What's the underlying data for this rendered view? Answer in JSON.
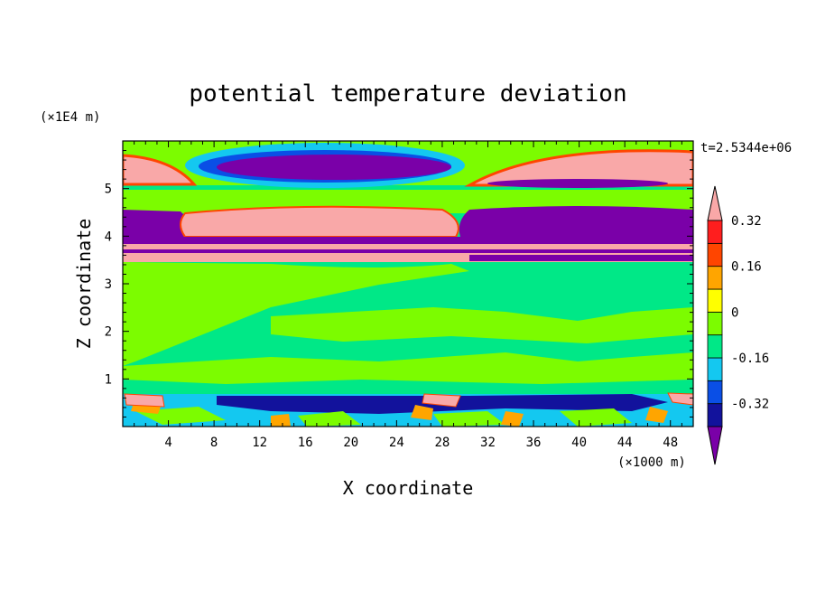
{
  "chart_data": {
    "type": "heatmap",
    "title": "potential temperature deviation",
    "xlabel": "X coordinate",
    "ylabel": "Z coordinate",
    "x_unit": "(×1000 m)",
    "y_unit": "(×1E4 m)",
    "time_label": "t=2.5344e+06",
    "xlim": [
      0,
      50
    ],
    "ylim": [
      0,
      6
    ],
    "x_ticks": [
      "4",
      "8",
      "12",
      "16",
      "20",
      "24",
      "28",
      "32",
      "36",
      "40",
      "44",
      "48"
    ],
    "y_ticks": [
      "1",
      "2",
      "3",
      "4",
      "5"
    ],
    "colorbar": {
      "labels": [
        "0.32",
        "0.16",
        "0",
        "-0.16",
        "-0.32"
      ],
      "levels": [
        -0.4,
        -0.32,
        -0.24,
        -0.16,
        -0.08,
        0,
        0.08,
        0.16,
        0.24,
        0.32,
        0.4
      ],
      "colors": [
        "#7A00A8",
        "#12129C",
        "#0A4FE6",
        "#14C8F0",
        "#00E887",
        "#7CFC00",
        "#FFFF00",
        "#FFA500",
        "#FF4500",
        "#FF1E1E",
        "#F9A8A8"
      ],
      "extend": "both"
    },
    "regions": [
      {
        "z_range": [
          0,
          0.7
        ],
        "description": "turbulent mixed field of all levels"
      },
      {
        "z_range": [
          0.7,
          3.5
        ],
        "dominant": [
          "0",
          "-0.08"
        ]
      },
      {
        "z_range": [
          3.5,
          4.7
        ],
        "dominant": [
          "0.4",
          "-0.4"
        ]
      },
      {
        "z_range": [
          4.7,
          6.0
        ],
        "dominant": [
          "0.4",
          "-0.4",
          "0.08"
        ]
      }
    ]
  }
}
